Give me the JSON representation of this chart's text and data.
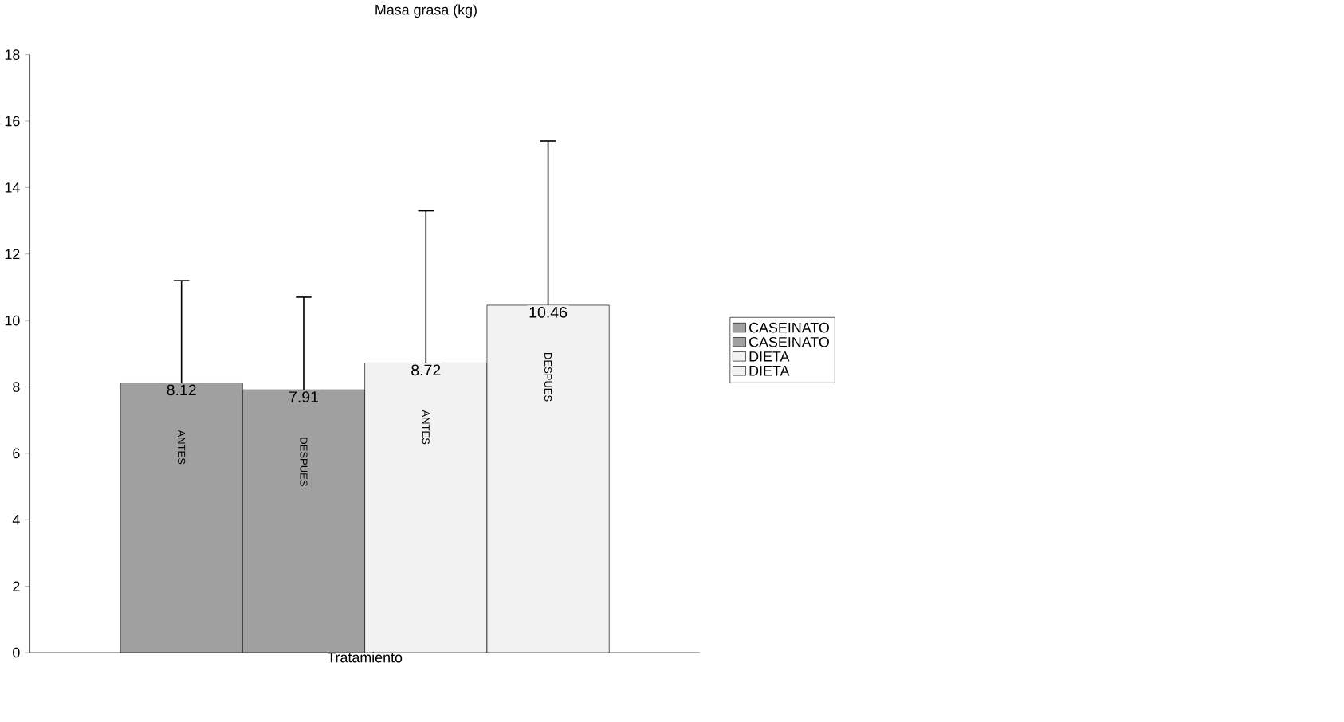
{
  "chart_data": {
    "type": "bar",
    "ylabel": "Masa grasa (kg)",
    "xlabel": "Tratamiento",
    "categories": [
      null
    ],
    "series": [
      {
        "name": "CASEINATO",
        "color": "#a0a0a0",
        "values": [
          8.12
        ],
        "errors": [
          [
            8.12,
            11.2
          ]
        ]
      },
      {
        "name": "CASEINATO",
        "color": "#a0a0a0",
        "values": [
          7.91
        ],
        "errors": [
          [
            7.91,
            10.7
          ]
        ]
      },
      {
        "name": "DIETA",
        "color": "#f2f2f2",
        "values": [
          8.72
        ],
        "errors": [
          [
            8.72,
            13.3
          ]
        ]
      },
      {
        "name": "DIETA",
        "color": "#f2f2f2",
        "values": [
          10.46
        ],
        "errors": [
          [
            10.46,
            15.4
          ]
        ]
      }
    ],
    "annotations": [
      "ANTES",
      "DESPUES",
      "ANTES",
      "DESPUES"
    ],
    "data_labels": true,
    "legend": "right",
    "grid": false,
    "ylim": [
      0,
      18
    ],
    "yticks": [
      0,
      2,
      4,
      6,
      8,
      10,
      12,
      14,
      16,
      18
    ]
  }
}
